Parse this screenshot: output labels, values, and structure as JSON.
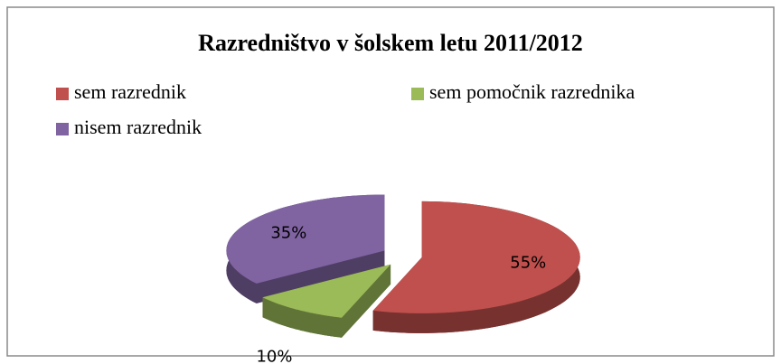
{
  "chart_data": {
    "type": "pie",
    "title": "Razredništvo v šolskem letu 2011/2012",
    "categories": [
      "sem razrednik",
      "sem pomočnik razrednika",
      "nisem razrednik"
    ],
    "values": [
      55,
      10,
      35
    ],
    "value_labels": [
      "55%",
      "10%",
      "35%"
    ],
    "colors": [
      "#c0504d",
      "#9bbb59",
      "#8064a2"
    ],
    "legend": "top"
  }
}
